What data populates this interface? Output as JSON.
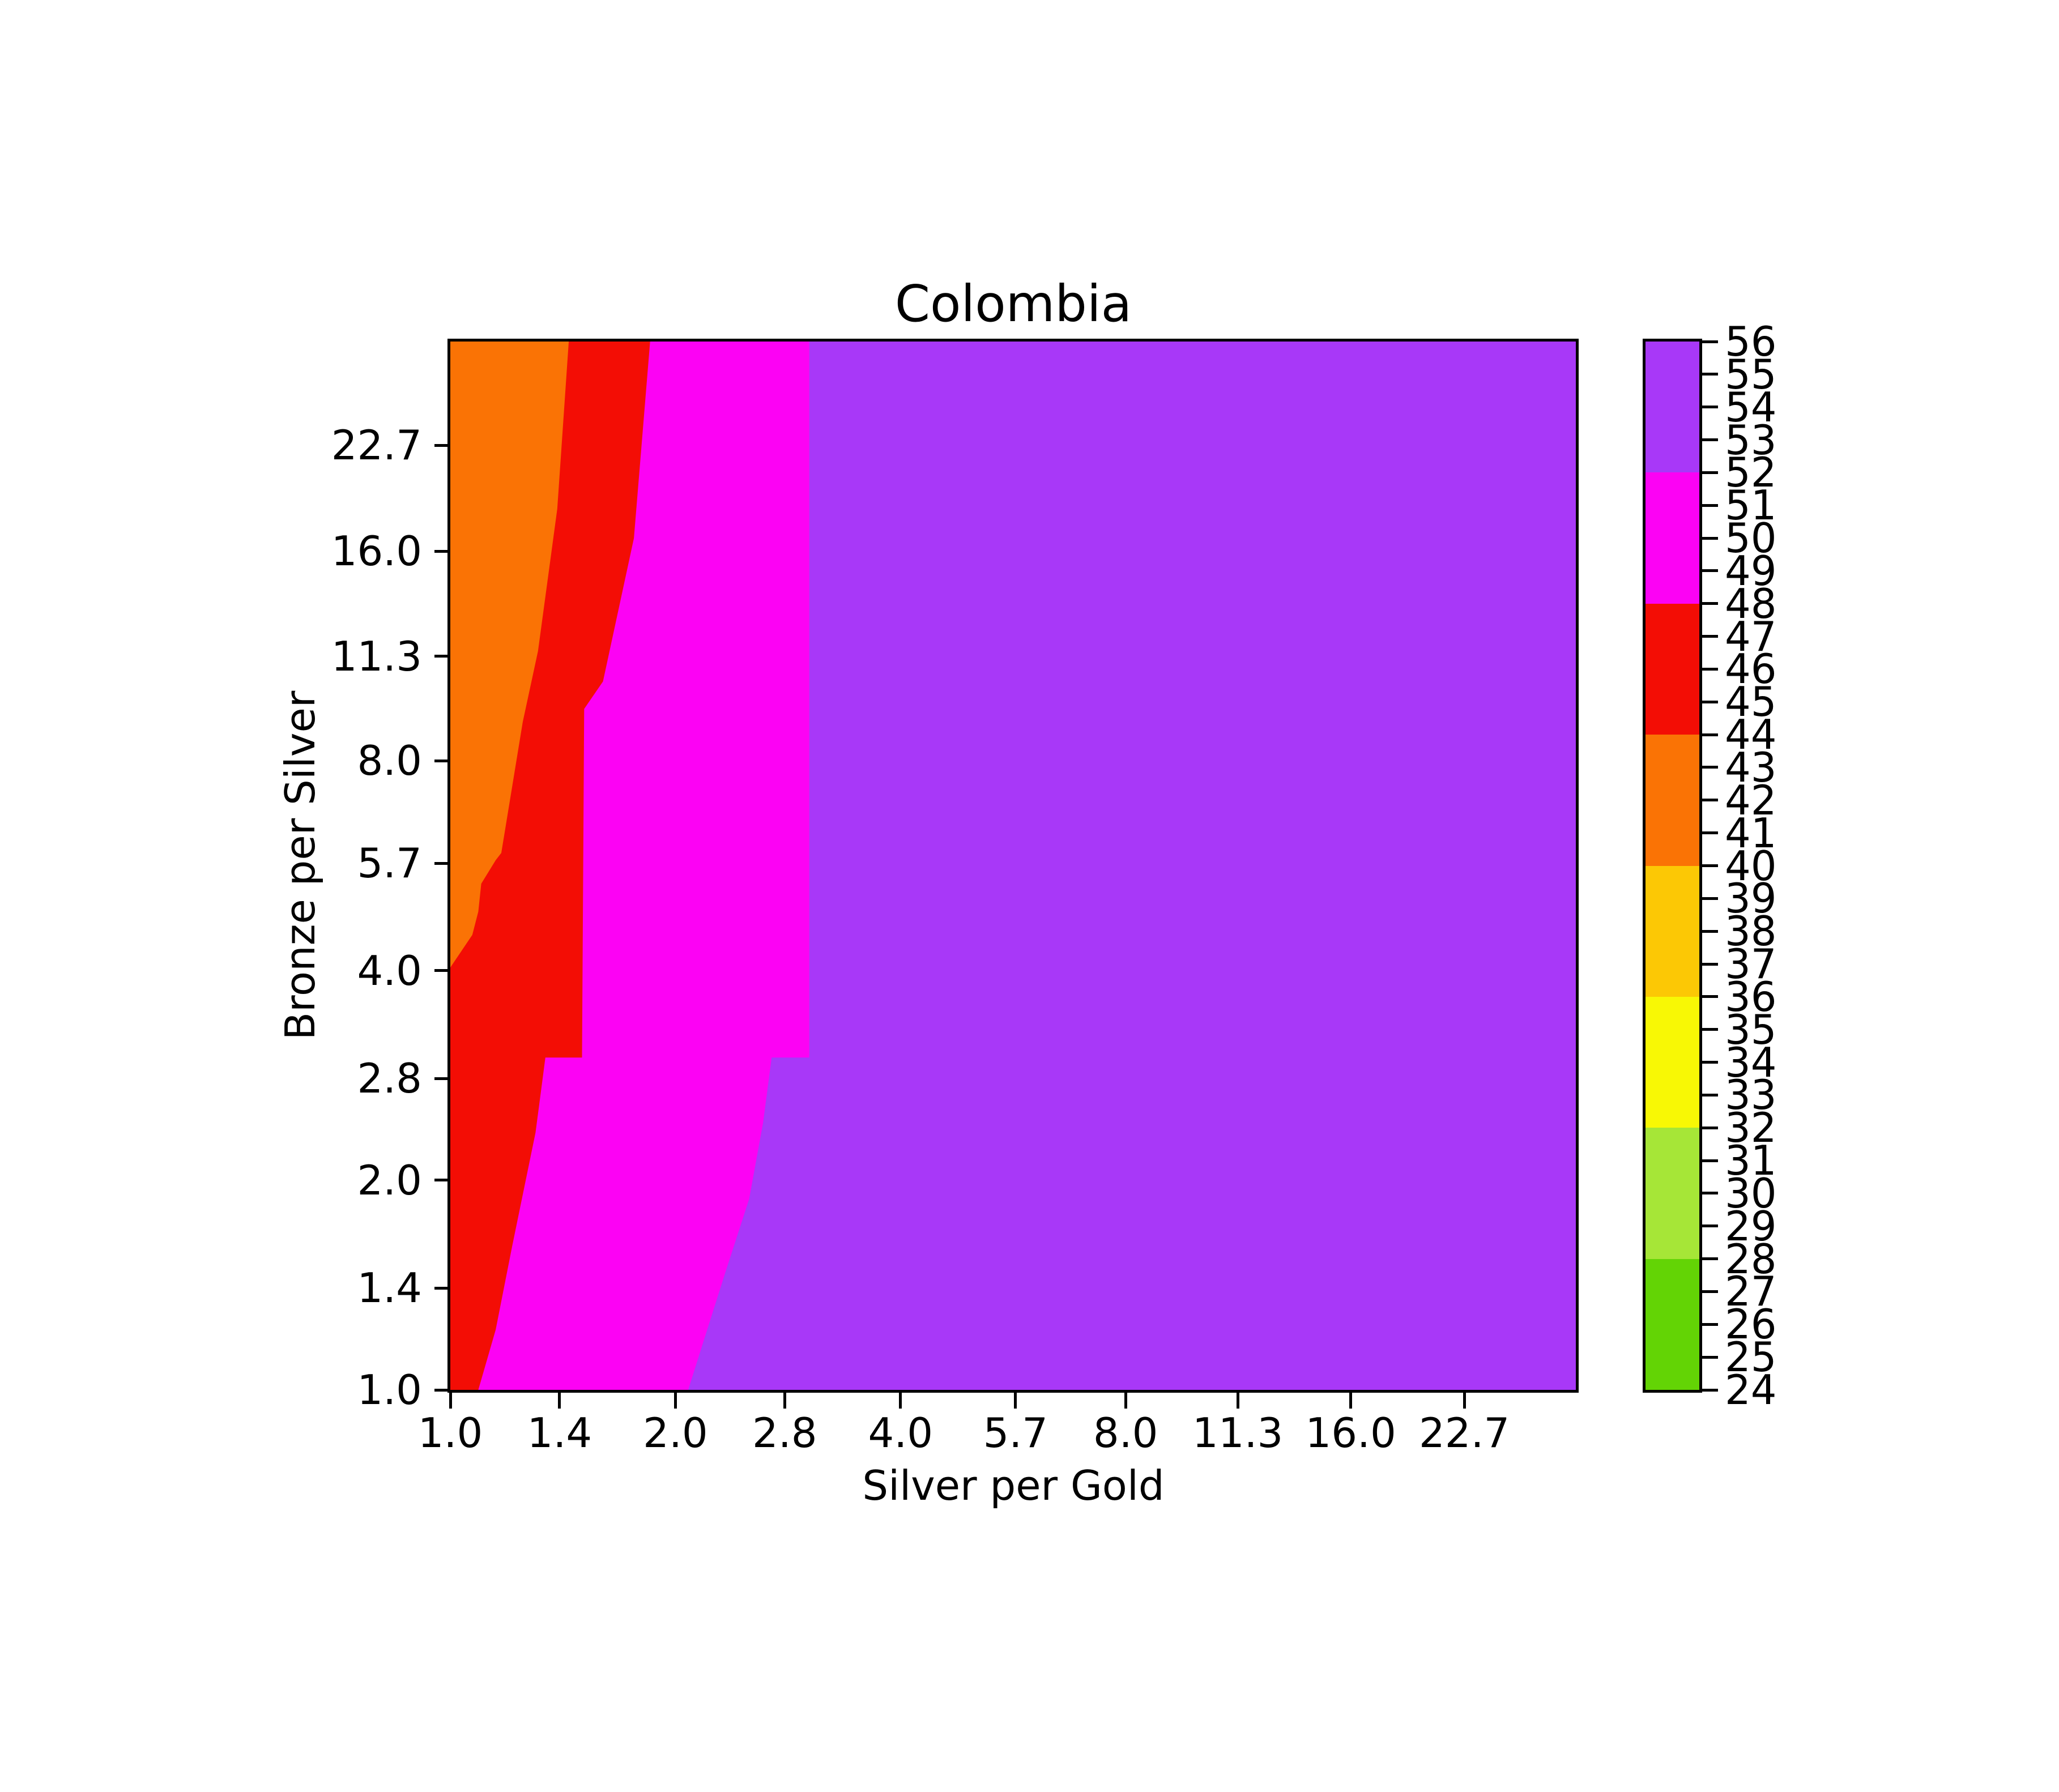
{
  "title": "Colombia",
  "axes": {
    "xlabel": "Silver per Gold",
    "ylabel": "Bronze per Silver",
    "tick_values": [
      1.0,
      1.4,
      2.0,
      2.8,
      4.0,
      5.7,
      8.0,
      11.3,
      16.0,
      22.7
    ],
    "x_tick_labels": [
      "1.0",
      "1.4",
      "2.0",
      "2.8",
      "4.0",
      "5.7",
      "8.0",
      "11.3",
      "16.0",
      "22.7"
    ],
    "y_tick_labels": [
      "1.0",
      "1.4",
      "2.0",
      "2.8",
      "4.0",
      "5.7",
      "8.0",
      "11.3",
      "16.0",
      "22.7"
    ]
  },
  "colorbar": {
    "min": 24,
    "max": 56,
    "tick_labels": [
      "56",
      "55",
      "54",
      "53",
      "52",
      "51",
      "50",
      "49",
      "48",
      "47",
      "46",
      "45",
      "44",
      "43",
      "42",
      "41",
      "40",
      "39",
      "38",
      "37",
      "36",
      "35",
      "34",
      "33",
      "32",
      "31",
      "30",
      "29",
      "28",
      "27",
      "26",
      "25",
      "24"
    ],
    "segments": [
      {
        "from": 52,
        "to": 56,
        "color": "#A838F8",
        "name": "purple"
      },
      {
        "from": 48,
        "to": 52,
        "color": "#FC02F4",
        "name": "magenta"
      },
      {
        "from": 44,
        "to": 48,
        "color": "#F30D05",
        "name": "red"
      },
      {
        "from": 40,
        "to": 44,
        "color": "#FA7305",
        "name": "orange"
      },
      {
        "from": 36,
        "to": 40,
        "color": "#FCC805",
        "name": "gold"
      },
      {
        "from": 32,
        "to": 36,
        "color": "#F8F805",
        "name": "yellow"
      },
      {
        "from": 28,
        "to": 32,
        "color": "#A6E637",
        "name": "yellowgreen"
      },
      {
        "from": 24,
        "to": 28,
        "color": "#63D405",
        "name": "green"
      }
    ]
  },
  "chart_data": {
    "type": "contourf",
    "title": "Colombia",
    "xlabel": "Silver per Gold",
    "ylabel": "Bronze per Silver",
    "x_scale": "log2",
    "y_scale": "log2",
    "x_range": [
      1.0,
      32.0
    ],
    "y_range": [
      1.0,
      32.0
    ],
    "x_ticks": [
      1.0,
      1.4,
      2.0,
      2.8,
      4.0,
      5.7,
      8.0,
      11.3,
      16.0,
      22.7
    ],
    "y_ticks": [
      1.0,
      1.4,
      2.0,
      2.8,
      4.0,
      5.7,
      8.0,
      11.3,
      16.0,
      22.7
    ],
    "value_range": [
      24,
      56
    ],
    "legend_position": "right-colorbar",
    "grid": false,
    "bands": [
      {
        "level": "52-56",
        "color": "#A838F8",
        "name": "purple",
        "polygon": [
          [
            1.0,
            1.0
          ],
          [
            32.0,
            1.0
          ],
          [
            32.0,
            32.0
          ],
          [
            1.0,
            32.0
          ]
        ]
      },
      {
        "level": "48-52",
        "color": "#FC02F4",
        "name": "magenta",
        "polygon": [
          [
            1.0,
            32.0
          ],
          [
            3.02,
            32.0
          ],
          [
            3.02,
            3.0
          ],
          [
            2.69,
            3.0
          ],
          [
            2.62,
            2.42
          ],
          [
            2.51,
            1.88
          ],
          [
            2.33,
            1.47
          ],
          [
            2.08,
            1.0
          ],
          [
            1.0,
            1.0
          ]
        ]
      },
      {
        "level": "44-48",
        "color": "#F30D05",
        "name": "red",
        "polygon": [
          [
            1.0,
            32.0
          ],
          [
            1.85,
            32.0
          ],
          [
            1.76,
            16.7
          ],
          [
            1.6,
            10.4
          ],
          [
            1.51,
            9.5
          ],
          [
            1.5,
            3.0
          ],
          [
            1.34,
            3.0
          ],
          [
            1.33,
            2.82
          ],
          [
            1.3,
            2.34
          ],
          [
            1.21,
            1.61
          ],
          [
            1.15,
            1.22
          ],
          [
            1.09,
            1.0
          ],
          [
            1.0,
            1.0
          ]
        ]
      },
      {
        "level": "40-44",
        "color": "#FA7305",
        "name": "orange",
        "polygon": [
          [
            1.0,
            32.0
          ],
          [
            1.44,
            32.0
          ],
          [
            1.39,
            18.4
          ],
          [
            1.31,
            11.5
          ],
          [
            1.25,
            9.1
          ],
          [
            1.17,
            5.9
          ],
          [
            1.15,
            5.76
          ],
          [
            1.1,
            5.33
          ],
          [
            1.09,
            4.86
          ],
          [
            1.07,
            4.5
          ],
          [
            1.0,
            4.04
          ]
        ]
      }
    ]
  }
}
